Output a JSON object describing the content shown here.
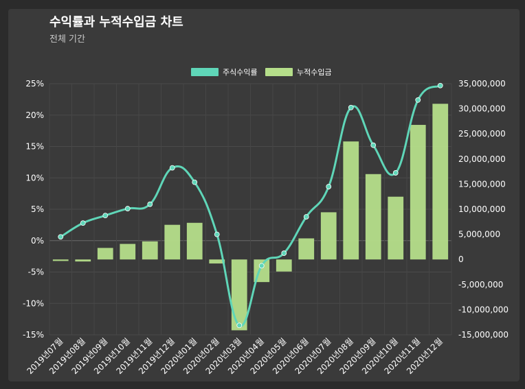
{
  "chart_data": {
    "type": "bar+line",
    "title": "수익률과 누적수입금 차트",
    "subtitle": "전체 기간",
    "categories": [
      "2019년07월",
      "2019년08월",
      "2019년09월",
      "2019년10월",
      "2019년11월",
      "2019년12월",
      "2020년01월",
      "2020년02월",
      "2020년03월",
      "2020년04월",
      "2020년05월",
      "2020년06월",
      "2020년07월",
      "2020년08월",
      "2020년09월",
      "2020년10월",
      "2020년11월",
      "2020년12월"
    ],
    "series": [
      {
        "name": "주식수익률",
        "type": "line",
        "axis": "left",
        "color": "#5fd6b8",
        "values": [
          0.6,
          2.8,
          4.0,
          5.1,
          5.8,
          11.6,
          9.3,
          1.0,
          -13.5,
          -4.0,
          -2.0,
          3.8,
          8.6,
          21.2,
          15.2,
          10.8,
          22.4,
          24.7
        ]
      },
      {
        "name": "누적수입금",
        "type": "bar",
        "axis": "right",
        "color": "#b5de8a",
        "values": [
          -300000,
          -400000,
          2300000,
          3100000,
          3600000,
          6900000,
          7300000,
          -800000,
          -14100000,
          -4500000,
          -2400000,
          4200000,
          9400000,
          23500000,
          17000000,
          12500000,
          26800000,
          31000000
        ]
      }
    ],
    "y_left": {
      "min": -15,
      "max": 25,
      "step": 5,
      "ticks": [
        "25%",
        "20%",
        "15%",
        "10%",
        "5%",
        "0%",
        "-5%",
        "-10%",
        "-15%"
      ]
    },
    "y_right": {
      "min": -15000000,
      "max": 35000000,
      "step": 5000000,
      "ticks": [
        "35,000,000",
        "30,000,000",
        "25,000,000",
        "20,000,000",
        "15,000,000",
        "10,000,000",
        "5,000,000",
        "0",
        "-5,000,000",
        "-10,000,000",
        "-15,000,000"
      ]
    },
    "legend": {
      "placement": "top-center"
    },
    "grid": true
  }
}
